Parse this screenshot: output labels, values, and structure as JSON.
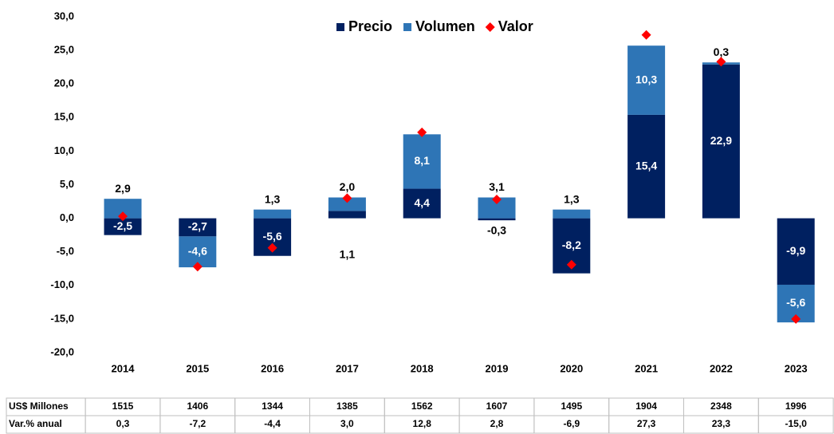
{
  "chart_data": {
    "type": "bar",
    "categories": [
      "2014",
      "2015",
      "2016",
      "2017",
      "2018",
      "2019",
      "2020",
      "2021",
      "2022",
      "2023"
    ],
    "series": [
      {
        "name": "Precio",
        "color": "#002060",
        "values": [
          -2.5,
          -2.7,
          -5.6,
          1.1,
          4.4,
          -0.3,
          -8.2,
          15.4,
          22.9,
          -9.9
        ],
        "value_labels": [
          "-2,5",
          "-2,7",
          "-5,6",
          "1,1",
          "4,4",
          "-0,3",
          "-8,2",
          "15,4",
          "22,9",
          "-9,9"
        ]
      },
      {
        "name": "Volumen",
        "color": "#2e75b6",
        "values": [
          2.9,
          -4.6,
          1.3,
          2.0,
          8.1,
          3.1,
          1.3,
          10.3,
          0.3,
          -5.6
        ],
        "value_labels": [
          "2,9",
          "-4,6",
          "1,3",
          "2,0",
          "8,1",
          "3,1",
          "1,3",
          "10,3",
          "0,3",
          "-5,6"
        ]
      },
      {
        "name": "Valor",
        "color": "#ff0000",
        "type": "scatter",
        "values": [
          0.3,
          -7.2,
          -4.4,
          3.0,
          12.8,
          2.8,
          -6.9,
          27.3,
          23.3,
          -15.0
        ],
        "value_labels": [
          "0,3",
          "-7,2",
          "-4,4",
          "3,0",
          "12,8",
          "2,8",
          "-6,9",
          "27,3",
          "23,3",
          "-15,0"
        ]
      }
    ],
    "stacked": true,
    "ylim": [
      -20,
      30
    ],
    "yticks": [
      {
        "value": -20,
        "label": "-20,0"
      },
      {
        "value": -15,
        "label": "-15,0"
      },
      {
        "value": -10,
        "label": "-10,0"
      },
      {
        "value": -5,
        "label": "-5,0"
      },
      {
        "value": 0,
        "label": "0,0"
      },
      {
        "value": 5,
        "label": "5,0"
      },
      {
        "value": 10,
        "label": "10,0"
      },
      {
        "value": 15,
        "label": "15,0"
      },
      {
        "value": 20,
        "label": "20,0"
      },
      {
        "value": 25,
        "label": "25,0"
      },
      {
        "value": 30,
        "label": "30,0"
      }
    ],
    "legend": "top",
    "table": {
      "rows": [
        {
          "label": "US$ Millones",
          "values": [
            1515,
            1406,
            1344,
            1385,
            1562,
            1607,
            1495,
            1904,
            2348,
            1996
          ]
        },
        {
          "label": "Var.% anual"
        }
      ]
    }
  }
}
